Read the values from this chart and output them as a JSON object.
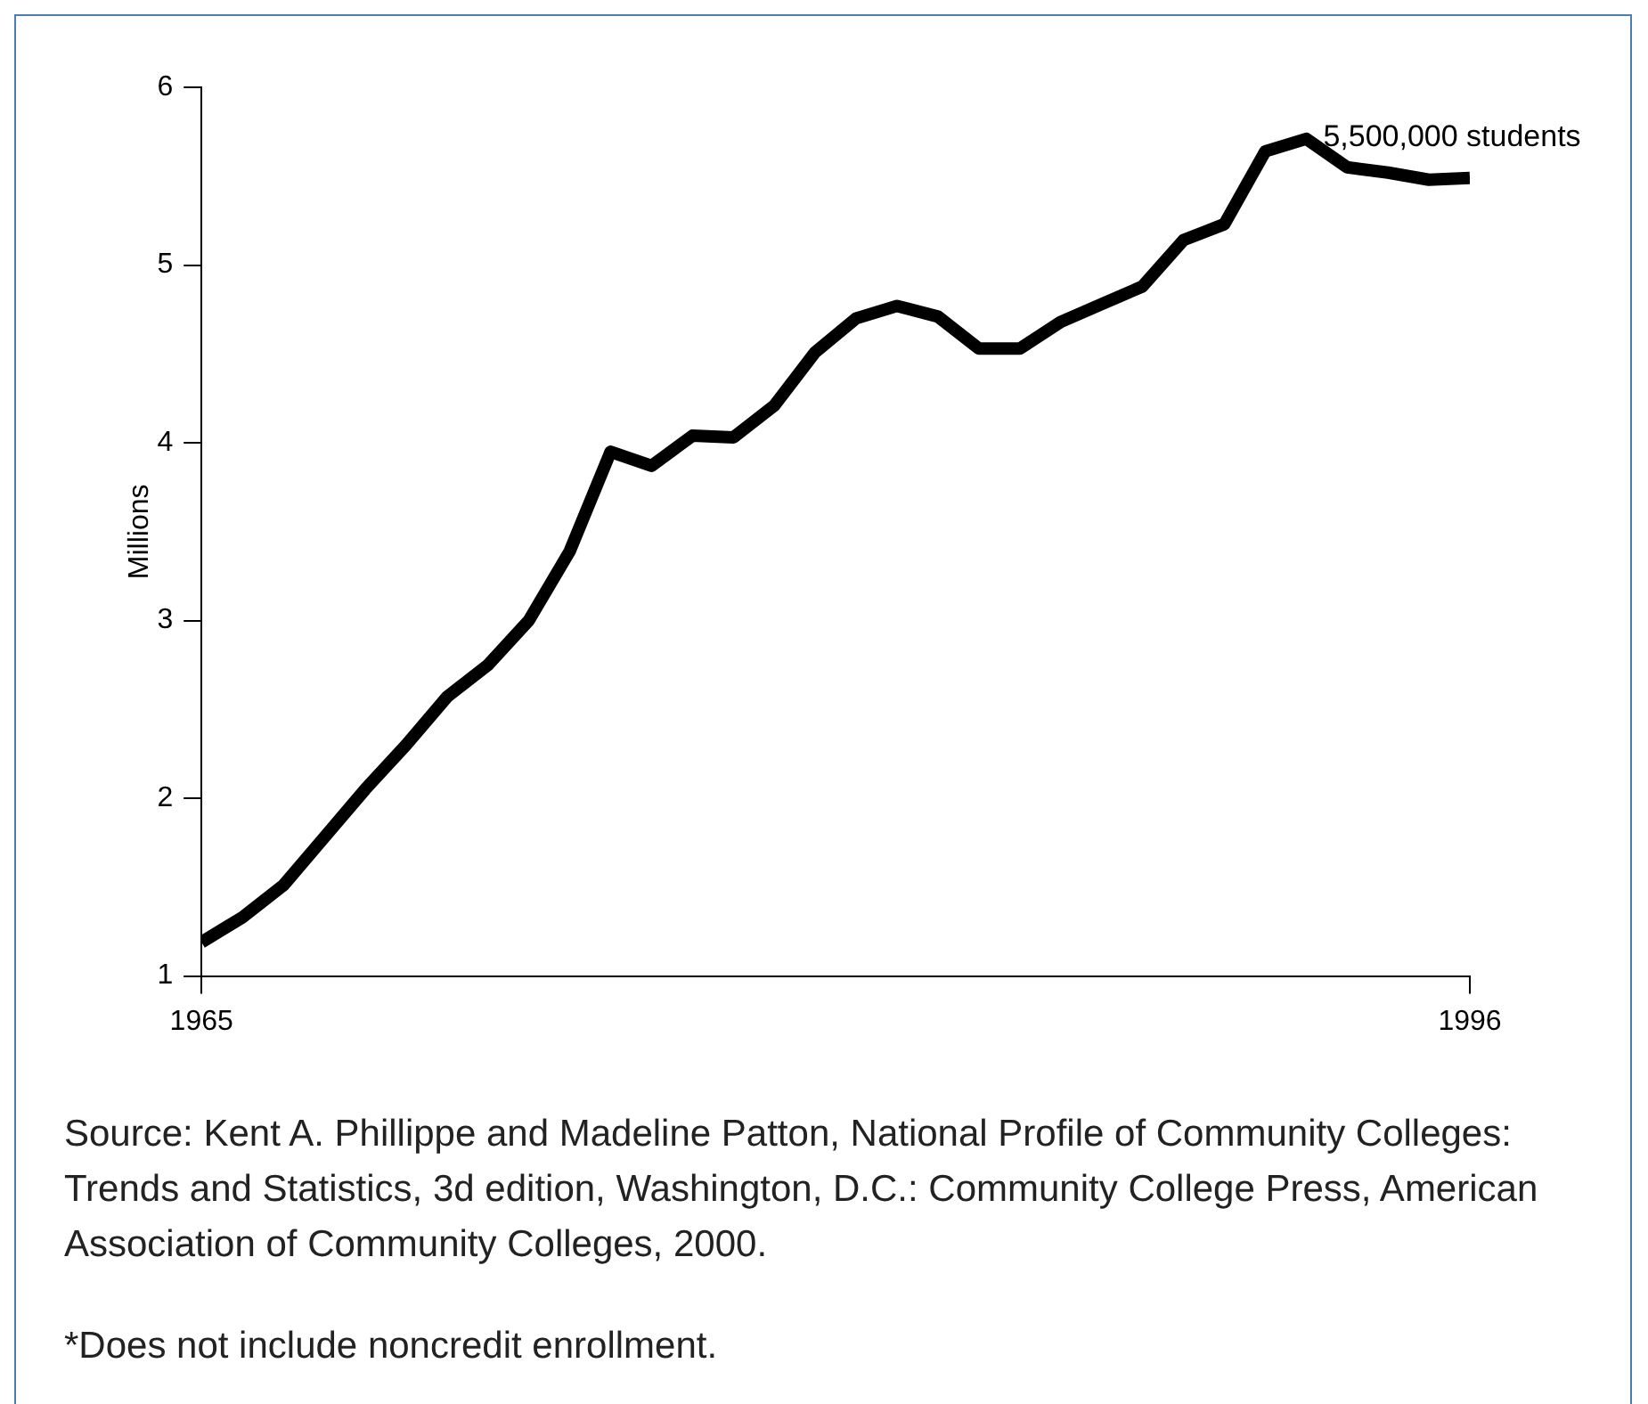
{
  "chart_data": {
    "type": "line",
    "ylabel": "Millions",
    "x": [
      1965,
      1966,
      1967,
      1968,
      1969,
      1970,
      1971,
      1972,
      1973,
      1974,
      1975,
      1976,
      1977,
      1978,
      1979,
      1980,
      1981,
      1982,
      1983,
      1984,
      1985,
      1986,
      1987,
      1988,
      1989,
      1990,
      1991,
      1992,
      1993,
      1994,
      1995,
      1996
    ],
    "series": [
      {
        "color": "#000000",
        "values": [
          1.19,
          1.33,
          1.51,
          1.78,
          2.05,
          2.3,
          2.57,
          2.75,
          3.0,
          3.39,
          3.95,
          3.87,
          4.04,
          4.03,
          4.21,
          4.51,
          4.7,
          4.77,
          4.71,
          4.53,
          4.53,
          4.68,
          4.78,
          4.88,
          5.14,
          5.23,
          5.64,
          5.71,
          5.55,
          5.52,
          5.48,
          5.49
        ]
      }
    ],
    "xlim": [
      1965,
      1996
    ],
    "xticks": [
      1965,
      1996
    ],
    "ylim": [
      1,
      6
    ],
    "yticks": [
      1,
      2,
      3,
      4,
      5,
      6
    ],
    "grid": false,
    "legend": false,
    "marker": "none",
    "line_style": "solid",
    "annotations": [
      {
        "text": "5,500,000 students",
        "x": 1996,
        "y": 5.49
      },
      "Source: Kent A. Phillippe and Madeline Patton, National Profile of Community Colleges: Trends and Statistics, 3d edition, Washington, D.C.: Community College Press, American Association of Community Colleges, 2000.",
      "*Does not include noncredit enrollment."
    ]
  }
}
